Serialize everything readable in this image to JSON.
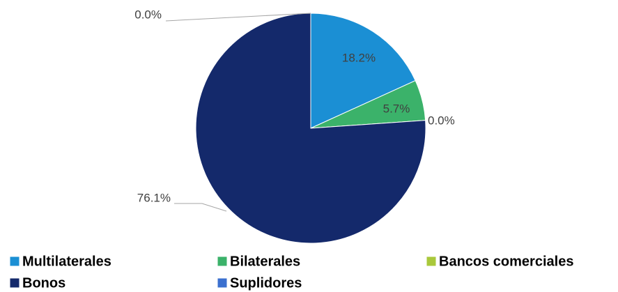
{
  "chart_data": {
    "type": "pie",
    "categories": [
      "Multilaterales",
      "Bilaterales",
      "Bancos comerciales",
      "Bonos",
      "Suplidores"
    ],
    "values": [
      18.2,
      5.7,
      0.0,
      76.1,
      0.0
    ],
    "value_labels": [
      "18.2%",
      "5.7%",
      "0.0%",
      "76.1%",
      "0.0%"
    ],
    "colors": [
      "#1b8fd4",
      "#3bb26a",
      "#a9c83b",
      "#14296b",
      "#3b70cf"
    ],
    "legend": "bottom"
  }
}
